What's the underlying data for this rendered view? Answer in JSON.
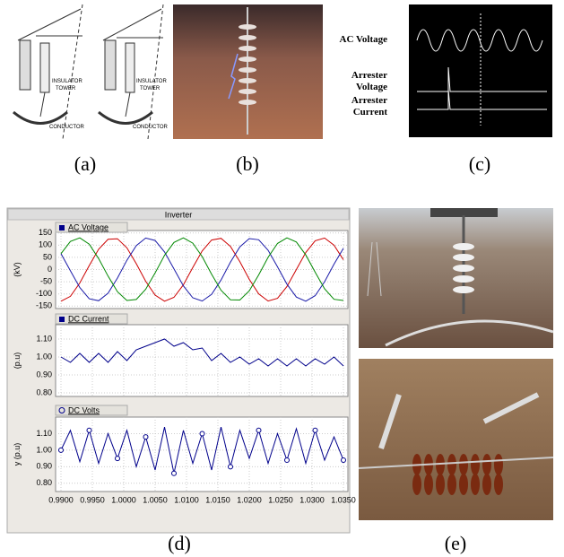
{
  "a": {
    "caption": "(a)",
    "labels": [
      "INSULATOR",
      "TOWER",
      "CONDUCTOR",
      "INSULATOR",
      "TOWER",
      "CONDUCTOR"
    ]
  },
  "b": {
    "caption": "(b)"
  },
  "c": {
    "caption": "(c)",
    "labels": [
      "AC Voltage",
      "Arrester",
      "Voltage",
      "Arrester",
      "Current"
    ]
  },
  "d": {
    "caption": "(d)",
    "title": "Inverter",
    "xlim": [
      0.99,
      1.035
    ],
    "xticks": [
      {
        "value": 0.99,
        "label": "0.9900"
      },
      {
        "value": 0.995,
        "label": "0.9950"
      },
      {
        "value": 1.0,
        "label": "1.0000"
      },
      {
        "value": 1.005,
        "label": "1.0050"
      },
      {
        "value": 1.01,
        "label": "1.0100"
      },
      {
        "value": 1.015,
        "label": "1.0150"
      },
      {
        "value": 1.02,
        "label": "1.0200"
      },
      {
        "value": 1.025,
        "label": "1.0250"
      },
      {
        "value": 1.03,
        "label": "1.0300"
      },
      {
        "value": 1.035,
        "label": "1.0350"
      }
    ],
    "x": [
      0.99,
      0.9915,
      0.993,
      0.9945,
      0.996,
      0.9975,
      0.999,
      1.0005,
      1.002,
      1.0035,
      1.005,
      1.0065,
      1.008,
      1.0095,
      1.011,
      1.0125,
      1.014,
      1.0155,
      1.017,
      1.0185,
      1.02,
      1.0215,
      1.023,
      1.0245,
      1.026,
      1.0275,
      1.029,
      1.0305,
      1.032,
      1.0335,
      1.035
    ],
    "charts": [
      {
        "type": "line",
        "legend": "AC Voltage",
        "ylabel": "(kV)",
        "ylim": [
          -160,
          160
        ],
        "yticks": [
          -150,
          -100,
          -50,
          0,
          50,
          100,
          150
        ],
        "grid": true,
        "series": [
          {
            "color": "#cc0000",
            "values": [
              -130,
              -110,
              -55,
              16,
              83,
              124,
              126,
              89,
              24,
              -48,
              -105,
              -130,
              -114,
              -63,
              8,
              76,
              121,
              128,
              95,
              32,
              -40,
              -100,
              -129,
              -118,
              -70,
              0,
              70,
              118,
              129,
              100,
              40
            ]
          },
          {
            "color": "#1a1aa8",
            "values": [
              65,
              -5,
              -74,
              -120,
              -128,
              -97,
              -35,
              38,
              98,
              129,
              119,
              72,
              3,
              -67,
              -116,
              -129,
              -102,
              -43,
              30,
              93,
              127,
              122,
              79,
              11,
              -60,
              -113,
              -130,
              -107,
              -50,
              22,
              87
            ]
          },
          {
            "color": "#008800",
            "values": [
              65,
              115,
              130,
              104,
              45,
              -27,
              -91,
              -127,
              -123,
              -81,
              -14,
              58,
              111,
              130,
              108,
              53,
              -19,
              -85,
              -124,
              -125,
              -87,
              -22,
              50,
              107,
              130,
              113,
              60,
              -11,
              -79,
              -122,
              -127
            ]
          }
        ]
      },
      {
        "type": "line",
        "legend": "DC Current",
        "ylabel": "(p.u)",
        "ylim": [
          0.78,
          1.18
        ],
        "yticks": [
          {
            "value": 0.8,
            "label": "0.80"
          },
          {
            "value": 0.9,
            "label": "0.90"
          },
          {
            "value": 1.0,
            "label": "1.00"
          },
          {
            "value": 1.1,
            "label": "1.10"
          }
        ],
        "grid": true,
        "series": [
          {
            "color": "#00008b",
            "values": [
              1.0,
              0.97,
              1.02,
              0.97,
              1.02,
              0.97,
              1.03,
              0.98,
              1.04,
              1.06,
              1.08,
              1.1,
              1.06,
              1.08,
              1.04,
              1.05,
              0.98,
              1.02,
              0.97,
              1.0,
              0.96,
              0.99,
              0.95,
              0.99,
              0.95,
              0.99,
              0.95,
              0.99,
              0.96,
              1.0,
              0.95
            ]
          }
        ]
      },
      {
        "type": "line",
        "legend": "DC Volts",
        "ylabel": "y (p.u)",
        "ylim": [
          0.75,
          1.2
        ],
        "yticks": [
          {
            "value": 0.8,
            "label": "0.80"
          },
          {
            "value": 0.9,
            "label": "0.90"
          },
          {
            "value": 1.0,
            "label": "1.00"
          },
          {
            "value": 1.1,
            "label": "1.10"
          }
        ],
        "grid": true,
        "marker": "circle",
        "series": [
          {
            "color": "#00008b",
            "values": [
              1.0,
              1.12,
              0.93,
              1.12,
              0.92,
              1.1,
              0.95,
              1.12,
              0.9,
              1.08,
              0.88,
              1.14,
              0.86,
              1.12,
              0.92,
              1.1,
              0.88,
              1.14,
              0.9,
              1.12,
              0.95,
              1.12,
              0.92,
              1.1,
              0.94,
              1.13,
              0.92,
              1.12,
              0.94,
              1.08,
              0.94
            ]
          }
        ]
      }
    ]
  },
  "e": {
    "caption": "(e)"
  }
}
